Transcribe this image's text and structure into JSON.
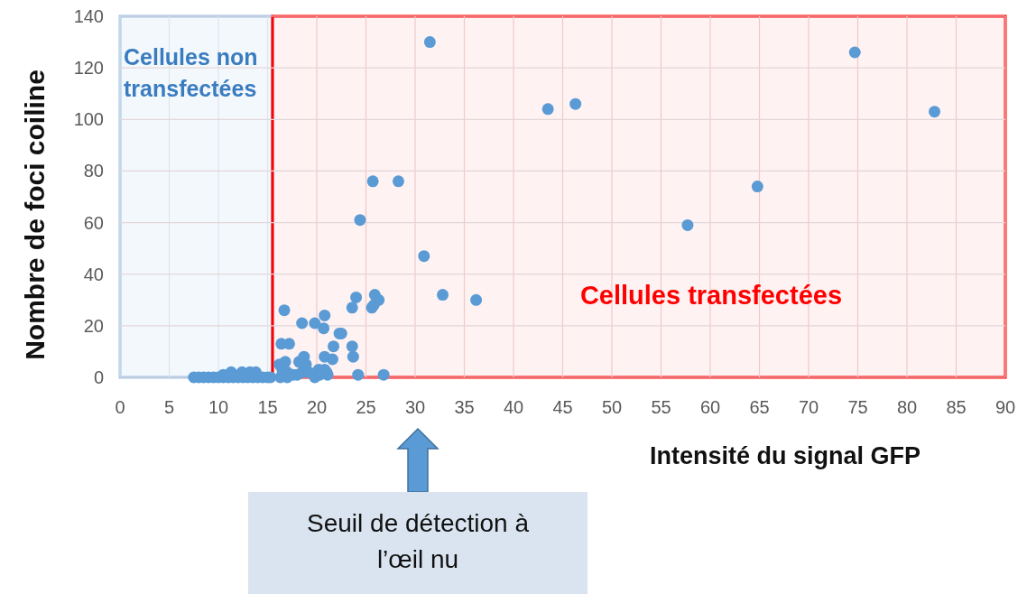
{
  "chart_data": {
    "type": "scatter",
    "xlabel": "Intensité du signal GFP",
    "ylabel": "Nombre de foci coiline",
    "xlim": [
      0,
      90
    ],
    "xticks": [
      0,
      5,
      10,
      15,
      20,
      25,
      30,
      35,
      40,
      45,
      50,
      55,
      60,
      65,
      70,
      75,
      80,
      85,
      90
    ],
    "ylim": [
      0,
      140
    ],
    "yticks": [
      0,
      20,
      40,
      60,
      80,
      100,
      120,
      140
    ],
    "grid": true,
    "marker": "circle",
    "bands": [
      {
        "axis": "x",
        "from": 0,
        "to": 15.5,
        "label": "Cellules non transfectées",
        "color": "#9dc3e6"
      },
      {
        "axis": "x",
        "from": 15.5,
        "to": 90,
        "label": "Cellules transfectées",
        "color": "#ff0000"
      }
    ],
    "annotations": [
      "Seuil de détection à l’œil nu"
    ],
    "series": [
      {
        "color": "#5b9bd5",
        "x": [
          7.5,
          8,
          8.5,
          9,
          9.5,
          10,
          10.5,
          11,
          11.5,
          12,
          12.5,
          13,
          13.5,
          14,
          14.5,
          15,
          15.3,
          10.5,
          11.3,
          12.4,
          13.2,
          13.8,
          16.2,
          16.5,
          16.8,
          17,
          17.6,
          18.2,
          18.5,
          18.9,
          19.2,
          16.3,
          17,
          18,
          19.8,
          20.3,
          20.8,
          21,
          20.2,
          21.1,
          16.4,
          17.2,
          18.7,
          21.6,
          20.8,
          23.6,
          23.7,
          24.2,
          26.8,
          21.7,
          22.3,
          22.5,
          20.7,
          20.8,
          19.8,
          18.5,
          16.7,
          25.6,
          25.8,
          26.3,
          25.9,
          23.6,
          24,
          24.4,
          25.7,
          28.3,
          30.9,
          32.8,
          36.2,
          31.5,
          74.7,
          43.5,
          46.3,
          82.8,
          64.8,
          57.7
        ],
        "values": [
          0,
          0,
          0,
          0,
          0,
          0,
          0,
          0,
          0,
          0,
          0,
          0,
          0,
          0,
          0,
          0,
          0,
          1,
          2,
          2,
          2,
          2,
          5,
          3,
          6,
          2,
          1,
          6,
          2,
          5,
          2,
          0,
          0,
          1,
          0,
          1,
          3,
          2,
          3,
          1,
          13,
          13,
          8,
          7,
          8,
          12,
          8,
          1,
          1,
          12,
          17,
          17,
          19,
          24,
          21,
          21,
          26,
          27,
          28,
          30,
          32,
          27,
          31,
          61,
          76,
          76,
          47,
          32,
          30,
          130,
          126,
          104,
          106,
          103,
          74,
          59
        ]
      }
    ]
  }
}
